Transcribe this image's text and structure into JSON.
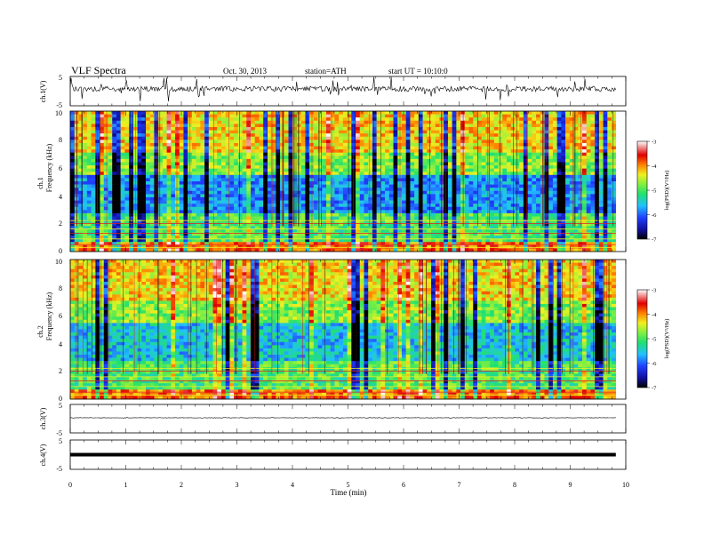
{
  "header": {
    "title": "VLF  Spectra",
    "date": "Oct. 30, 2013",
    "station": "station=ATH",
    "start": "start  UT  =   10:10:0"
  },
  "panels": {
    "ch1_wave": {
      "ylabel": "ch.1(V)",
      "yticks": [
        "5",
        "-5"
      ]
    },
    "ch1_spec": {
      "ylabel_line1": "ch.1",
      "ylabel_line2": "Frequency  (kHz)",
      "yticks": [
        "10",
        "8",
        "6",
        "4",
        "2",
        "0"
      ]
    },
    "ch2_spec": {
      "ylabel_line1": "ch.2",
      "ylabel_line2": "Frequency  (kHz)",
      "yticks": [
        "10",
        "8",
        "6",
        "4",
        "2",
        "0"
      ]
    },
    "ch3_wave": {
      "ylabel": "ch.3(V)",
      "yticks": [
        "5",
        "-5"
      ]
    },
    "ch4_wave": {
      "ylabel": "ch.4(V)",
      "yticks": [
        "5",
        "-5"
      ]
    }
  },
  "colorbar": {
    "label": "log(PSD)(V²/Hz)",
    "ticks": [
      "-3",
      "-4",
      "-5",
      "-6",
      "-7"
    ],
    "range": [
      -7,
      -3
    ],
    "colors": [
      "#000000",
      "#1010a0",
      "#2040ff",
      "#20c0ff",
      "#20e070",
      "#80f040",
      "#f0f020",
      "#ff8000",
      "#e00000",
      "#ffffff"
    ]
  },
  "xaxis": {
    "label": "Time  (min)",
    "ticks": [
      "0",
      "1",
      "2",
      "3",
      "4",
      "5",
      "6",
      "7",
      "8",
      "9",
      "10"
    ],
    "range": [
      0,
      10
    ],
    "data_end": 9.82
  },
  "chart_data": {
    "type": "heatmap",
    "title": "VLF  Spectra",
    "xlabel": "Time  (min)",
    "ylabel": "Frequency  (kHz)",
    "xlim": [
      0,
      10
    ],
    "ylim": [
      0,
      10
    ],
    "wave_ylim": [
      -5,
      5
    ],
    "colorbar_range": [
      -7,
      -3
    ],
    "colorbar_label": "log(PSD)(V²/Hz)",
    "series": [
      {
        "name": "ch.1(V)"
      },
      {
        "name": "ch.1"
      },
      {
        "name": "ch.2"
      },
      {
        "name": "ch.3(V)"
      },
      {
        "name": "ch.4(V)"
      }
    ]
  }
}
